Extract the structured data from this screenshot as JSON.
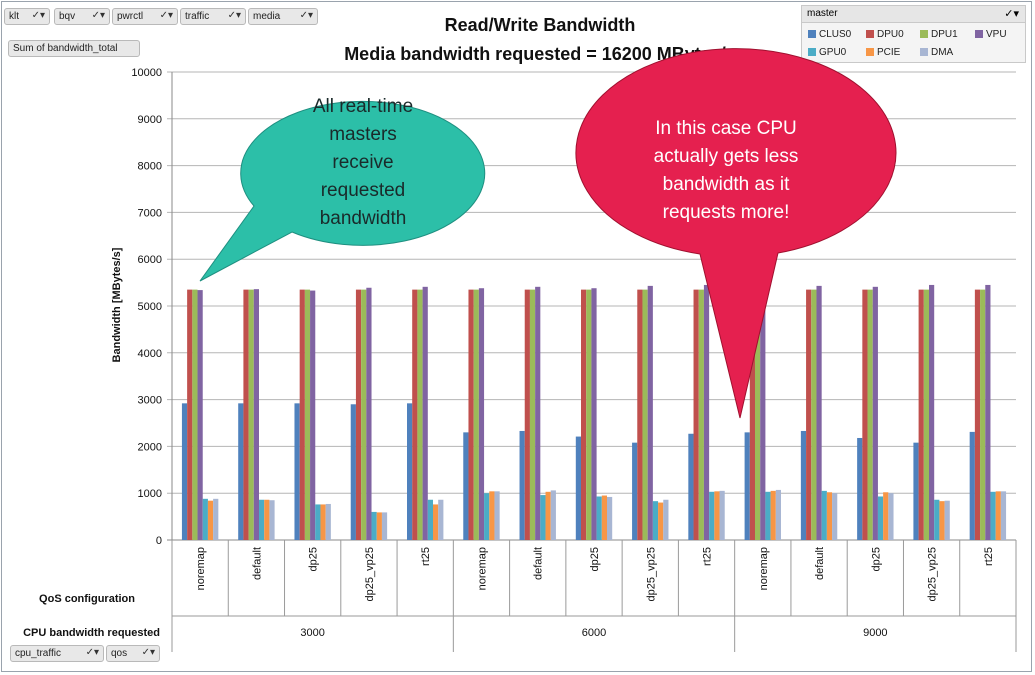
{
  "report_filters": [
    {
      "label": "klt",
      "state": "all"
    },
    {
      "label": "bqv",
      "state": "all"
    },
    {
      "label": "pwrctl",
      "state": "all"
    },
    {
      "label": "traffic",
      "state": "all"
    },
    {
      "label": "media",
      "state": "all"
    }
  ],
  "value_field": "Sum of bandwidth_total",
  "row_fields": [
    {
      "label": "cpu_traffic",
      "state": "all"
    },
    {
      "label": "qos",
      "state": "all"
    }
  ],
  "legend_field": {
    "label": "master",
    "state": "all"
  },
  "row_labels": {
    "inner": "QoS configuration",
    "outer": "CPU bandwidth requested"
  },
  "callouts": {
    "left": "All real-time masters receive requested bandwidth",
    "left_lines": [
      "All real-time",
      "masters",
      "receive",
      "requested",
      "bandwidth"
    ],
    "right": "In this case CPU actually gets less bandwidth as it requests more!",
    "right_lines": [
      "In this case CPU",
      "actually gets less",
      "bandwidth as it",
      "requests more!"
    ],
    "left_color": "#2cbfa8",
    "right_color": "#e5204f"
  },
  "chart_data": {
    "type": "bar",
    "title": "Read/Write Bandwidth",
    "subtitle": "Media bandwidth requested = 16200 MBytes/s",
    "xlabel": "",
    "ylabel": "Bandwidth [MBytes/s]",
    "ylim": [
      0,
      10000
    ],
    "yticks": [
      0,
      1000,
      2000,
      3000,
      4000,
      5000,
      6000,
      7000,
      8000,
      9000,
      10000
    ],
    "grid": true,
    "legend_position": "top-right",
    "groups": [
      {
        "label": "3000",
        "categories": [
          "noremap",
          "default",
          "dp25",
          "dp25_vp25",
          "rt25"
        ]
      },
      {
        "label": "6000",
        "categories": [
          "noremap",
          "default",
          "dp25",
          "dp25_vp25",
          "rt25"
        ]
      },
      {
        "label": "9000",
        "categories": [
          "noremap",
          "default",
          "dp25",
          "dp25_vp25",
          "rt25"
        ]
      }
    ],
    "series": [
      {
        "name": "CLUS0",
        "color": "#4f81bd",
        "values": [
          2920,
          2920,
          2920,
          2900,
          2920,
          2300,
          2330,
          2210,
          2080,
          2270,
          2300,
          2330,
          2180,
          2080,
          2310
        ]
      },
      {
        "name": "DPU0",
        "color": "#c0504d",
        "values": [
          5350,
          5350,
          5350,
          5350,
          5350,
          5350,
          5350,
          5350,
          5350,
          5350,
          5350,
          5350,
          5350,
          5350,
          5350
        ]
      },
      {
        "name": "DPU1",
        "color": "#9bbb59",
        "values": [
          5350,
          5350,
          5350,
          5350,
          5350,
          5350,
          5350,
          5350,
          5350,
          5350,
          5350,
          5350,
          5350,
          5350,
          5350
        ]
      },
      {
        "name": "VPU",
        "color": "#8064a2",
        "values": [
          5340,
          5360,
          5330,
          5390,
          5410,
          5380,
          5410,
          5380,
          5430,
          5450,
          5390,
          5430,
          5410,
          5450,
          5450
        ]
      },
      {
        "name": "GPU0",
        "color": "#4bacc6",
        "values": [
          880,
          860,
          760,
          600,
          860,
          1000,
          960,
          930,
          830,
          1030,
          1030,
          1050,
          930,
          860,
          1030
        ]
      },
      {
        "name": "PCIE",
        "color": "#f79646",
        "values": [
          840,
          860,
          760,
          590,
          760,
          1040,
          1030,
          950,
          800,
          1040,
          1050,
          1020,
          1020,
          830,
          1040
        ]
      },
      {
        "name": "DMA",
        "color": "#a8b6d3",
        "values": [
          880,
          850,
          770,
          590,
          860,
          1040,
          1060,
          920,
          860,
          1050,
          1070,
          1000,
          1000,
          840,
          1040
        ]
      }
    ]
  }
}
